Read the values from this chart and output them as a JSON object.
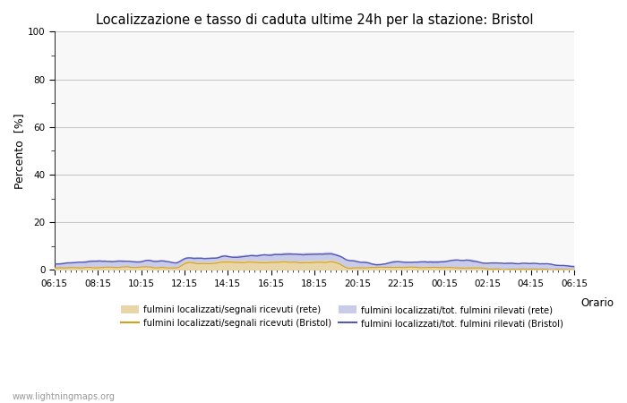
{
  "title": "Localizzazione e tasso di caduta ultime 24h per la stazione: Bristol",
  "ylabel": "Percento  [%]",
  "ylim": [
    0,
    100
  ],
  "yticks_major": [
    0,
    20,
    40,
    60,
    80,
    100
  ],
  "yticks_minor": [
    10,
    30,
    50,
    70,
    90
  ],
  "xtick_labels": [
    "06:15",
    "08:15",
    "10:15",
    "12:15",
    "14:15",
    "16:15",
    "18:15",
    "20:15",
    "22:15",
    "00:15",
    "02:15",
    "04:15",
    "06:15"
  ],
  "watermark": "www.lightningmaps.org",
  "fill_rete_signals_color": "#e8d5a8",
  "fill_rete_total_color": "#c8cce8",
  "line_bristol_signals_color": "#d4a020",
  "line_bristol_total_color": "#5858b8",
  "background_color": "#ffffff",
  "grid_color": "#c8c8c8",
  "plot_bg": "#f8f8f8",
  "legend_labels": [
    "fulmini localizzati/segnali ricevuti (rete)",
    "fulmini localizzati/segnali ricevuti (Bristol)",
    "fulmini localizzati/tot. fulmini rilevati (rete)",
    "fulmini localizzati/tot. fulmini rilevati (Bristol)"
  ]
}
